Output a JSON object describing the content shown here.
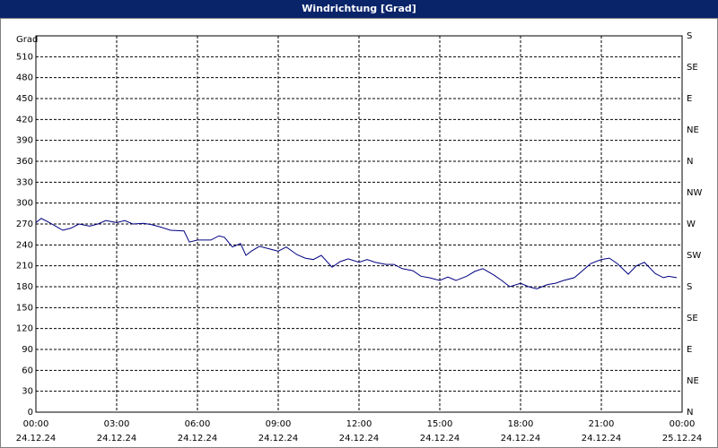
{
  "chart_data": {
    "type": "line",
    "title": "Windrichtung [Grad]",
    "ylabel": "Grad",
    "x": [
      0,
      0.2,
      0.5,
      1,
      1.3,
      1.6,
      2,
      2.3,
      2.6,
      3,
      3.3,
      3.6,
      4,
      4.3,
      4.6,
      5,
      5.5,
      5.7,
      6,
      6.5,
      6.8,
      7,
      7.3,
      7.6,
      7.8,
      8,
      8.3,
      8.7,
      9,
      9.3,
      9.7,
      10,
      10.3,
      10.6,
      11,
      11.3,
      11.6,
      12,
      12.3,
      12.6,
      13,
      13.3,
      13.6,
      14,
      14.3,
      14.6,
      15,
      15.3,
      15.6,
      16,
      16.3,
      16.6,
      17,
      17.3,
      17.6,
      18,
      18.3,
      18.6,
      19,
      19.3,
      19.6,
      20,
      20.3,
      20.6,
      21,
      21.3,
      21.6,
      22,
      22.3,
      22.6,
      23,
      23.3,
      23.5,
      23.8
    ],
    "series": [
      {
        "name": "Windrichtung",
        "color": "#000080",
        "values": [
          272,
          278,
          272,
          261,
          264,
          270,
          267,
          270,
          275,
          272,
          275,
          270,
          271,
          269,
          266,
          261,
          260,
          244,
          247,
          247,
          253,
          251,
          237,
          242,
          225,
          231,
          238,
          234,
          231,
          237,
          226,
          221,
          219,
          225,
          208,
          216,
          220,
          215,
          219,
          215,
          212,
          212,
          206,
          203,
          195,
          193,
          189,
          194,
          189,
          195,
          202,
          206,
          197,
          189,
          180,
          185,
          180,
          177,
          183,
          185,
          189,
          193,
          203,
          213,
          219,
          221,
          213,
          198,
          210,
          215,
          199,
          193,
          195,
          193
        ]
      }
    ],
    "xlim": [
      0,
      24
    ],
    "xticks": [
      {
        "value": 0,
        "label": "00:00"
      },
      {
        "value": 3,
        "label": "03:00"
      },
      {
        "value": 6,
        "label": "06:00"
      },
      {
        "value": 9,
        "label": "09:00"
      },
      {
        "value": 12,
        "label": "12:00"
      },
      {
        "value": 15,
        "label": "15:00"
      },
      {
        "value": 18,
        "label": "18:00"
      },
      {
        "value": 21,
        "label": "21:00"
      },
      {
        "value": 24,
        "label": "00:00"
      }
    ],
    "xtick_dates": [
      "24.12.24",
      "24.12.24",
      "24.12.24",
      "24.12.24",
      "24.12.24",
      "24.12.24",
      "24.12.24",
      "24.12.24",
      "25.12.24"
    ],
    "ylim": [
      0,
      540
    ],
    "yticks": [
      0,
      30,
      60,
      90,
      120,
      150,
      180,
      210,
      240,
      270,
      300,
      330,
      360,
      390,
      420,
      450,
      480,
      510
    ],
    "y2lim": [
      0,
      540
    ],
    "y2ticks": [
      {
        "value": 0,
        "label": "N"
      },
      {
        "value": 45,
        "label": "NE"
      },
      {
        "value": 90,
        "label": "E"
      },
      {
        "value": 135,
        "label": "SE"
      },
      {
        "value": 180,
        "label": "S"
      },
      {
        "value": 225,
        "label": "SW"
      },
      {
        "value": 270,
        "label": "W"
      },
      {
        "value": 315,
        "label": "NW"
      },
      {
        "value": 360,
        "label": "N"
      },
      {
        "value": 405,
        "label": "NE"
      },
      {
        "value": 450,
        "label": "E"
      },
      {
        "value": 495,
        "label": "SE"
      },
      {
        "value": 540,
        "label": "S"
      }
    ],
    "grid": true
  }
}
